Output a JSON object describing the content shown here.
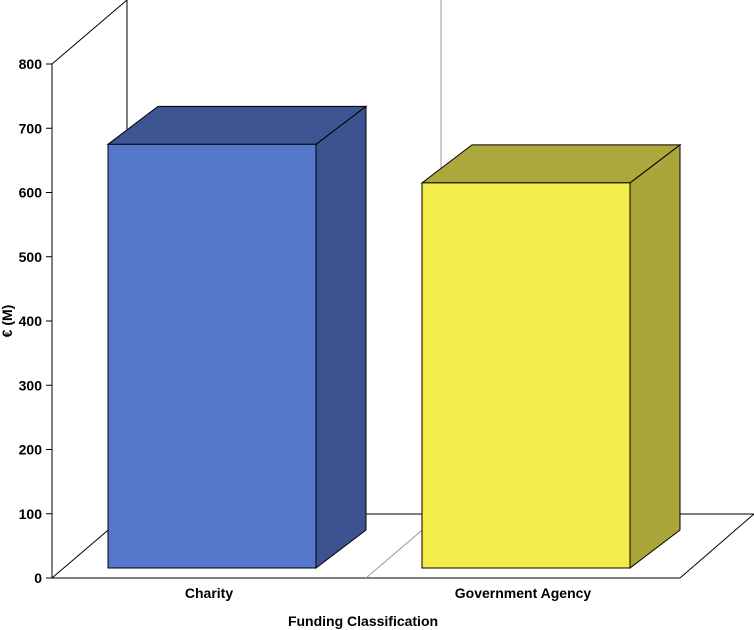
{
  "chart_data": {
    "type": "bar",
    "categories": [
      "Charity",
      "Government Agency"
    ],
    "values": [
      675,
      615
    ],
    "colors": [
      "#5577cc",
      "#f2ed4a"
    ],
    "side_colors": [
      "#3d5290",
      "#aaa63a"
    ],
    "top_colors": [
      "#3e5594",
      "#aca83b"
    ],
    "xlabel": "Funding Classification",
    "ylabel": "€ (M)",
    "ylim": [
      0,
      800
    ],
    "yticks": [
      0,
      100,
      200,
      300,
      400,
      500,
      600,
      700,
      800
    ],
    "grid": false,
    "legend": "none",
    "style": "3d"
  }
}
